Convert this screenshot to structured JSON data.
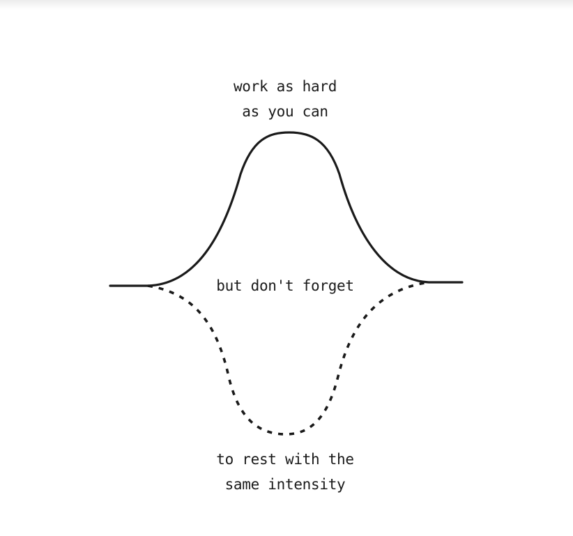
{
  "captions": {
    "top": [
      "work as hard",
      "as you can"
    ],
    "middle": "but don't forget",
    "bottom": [
      "to rest with the",
      "same intensity"
    ]
  },
  "colors": {
    "stroke": "#1a1a1a",
    "background": "#ffffff"
  }
}
